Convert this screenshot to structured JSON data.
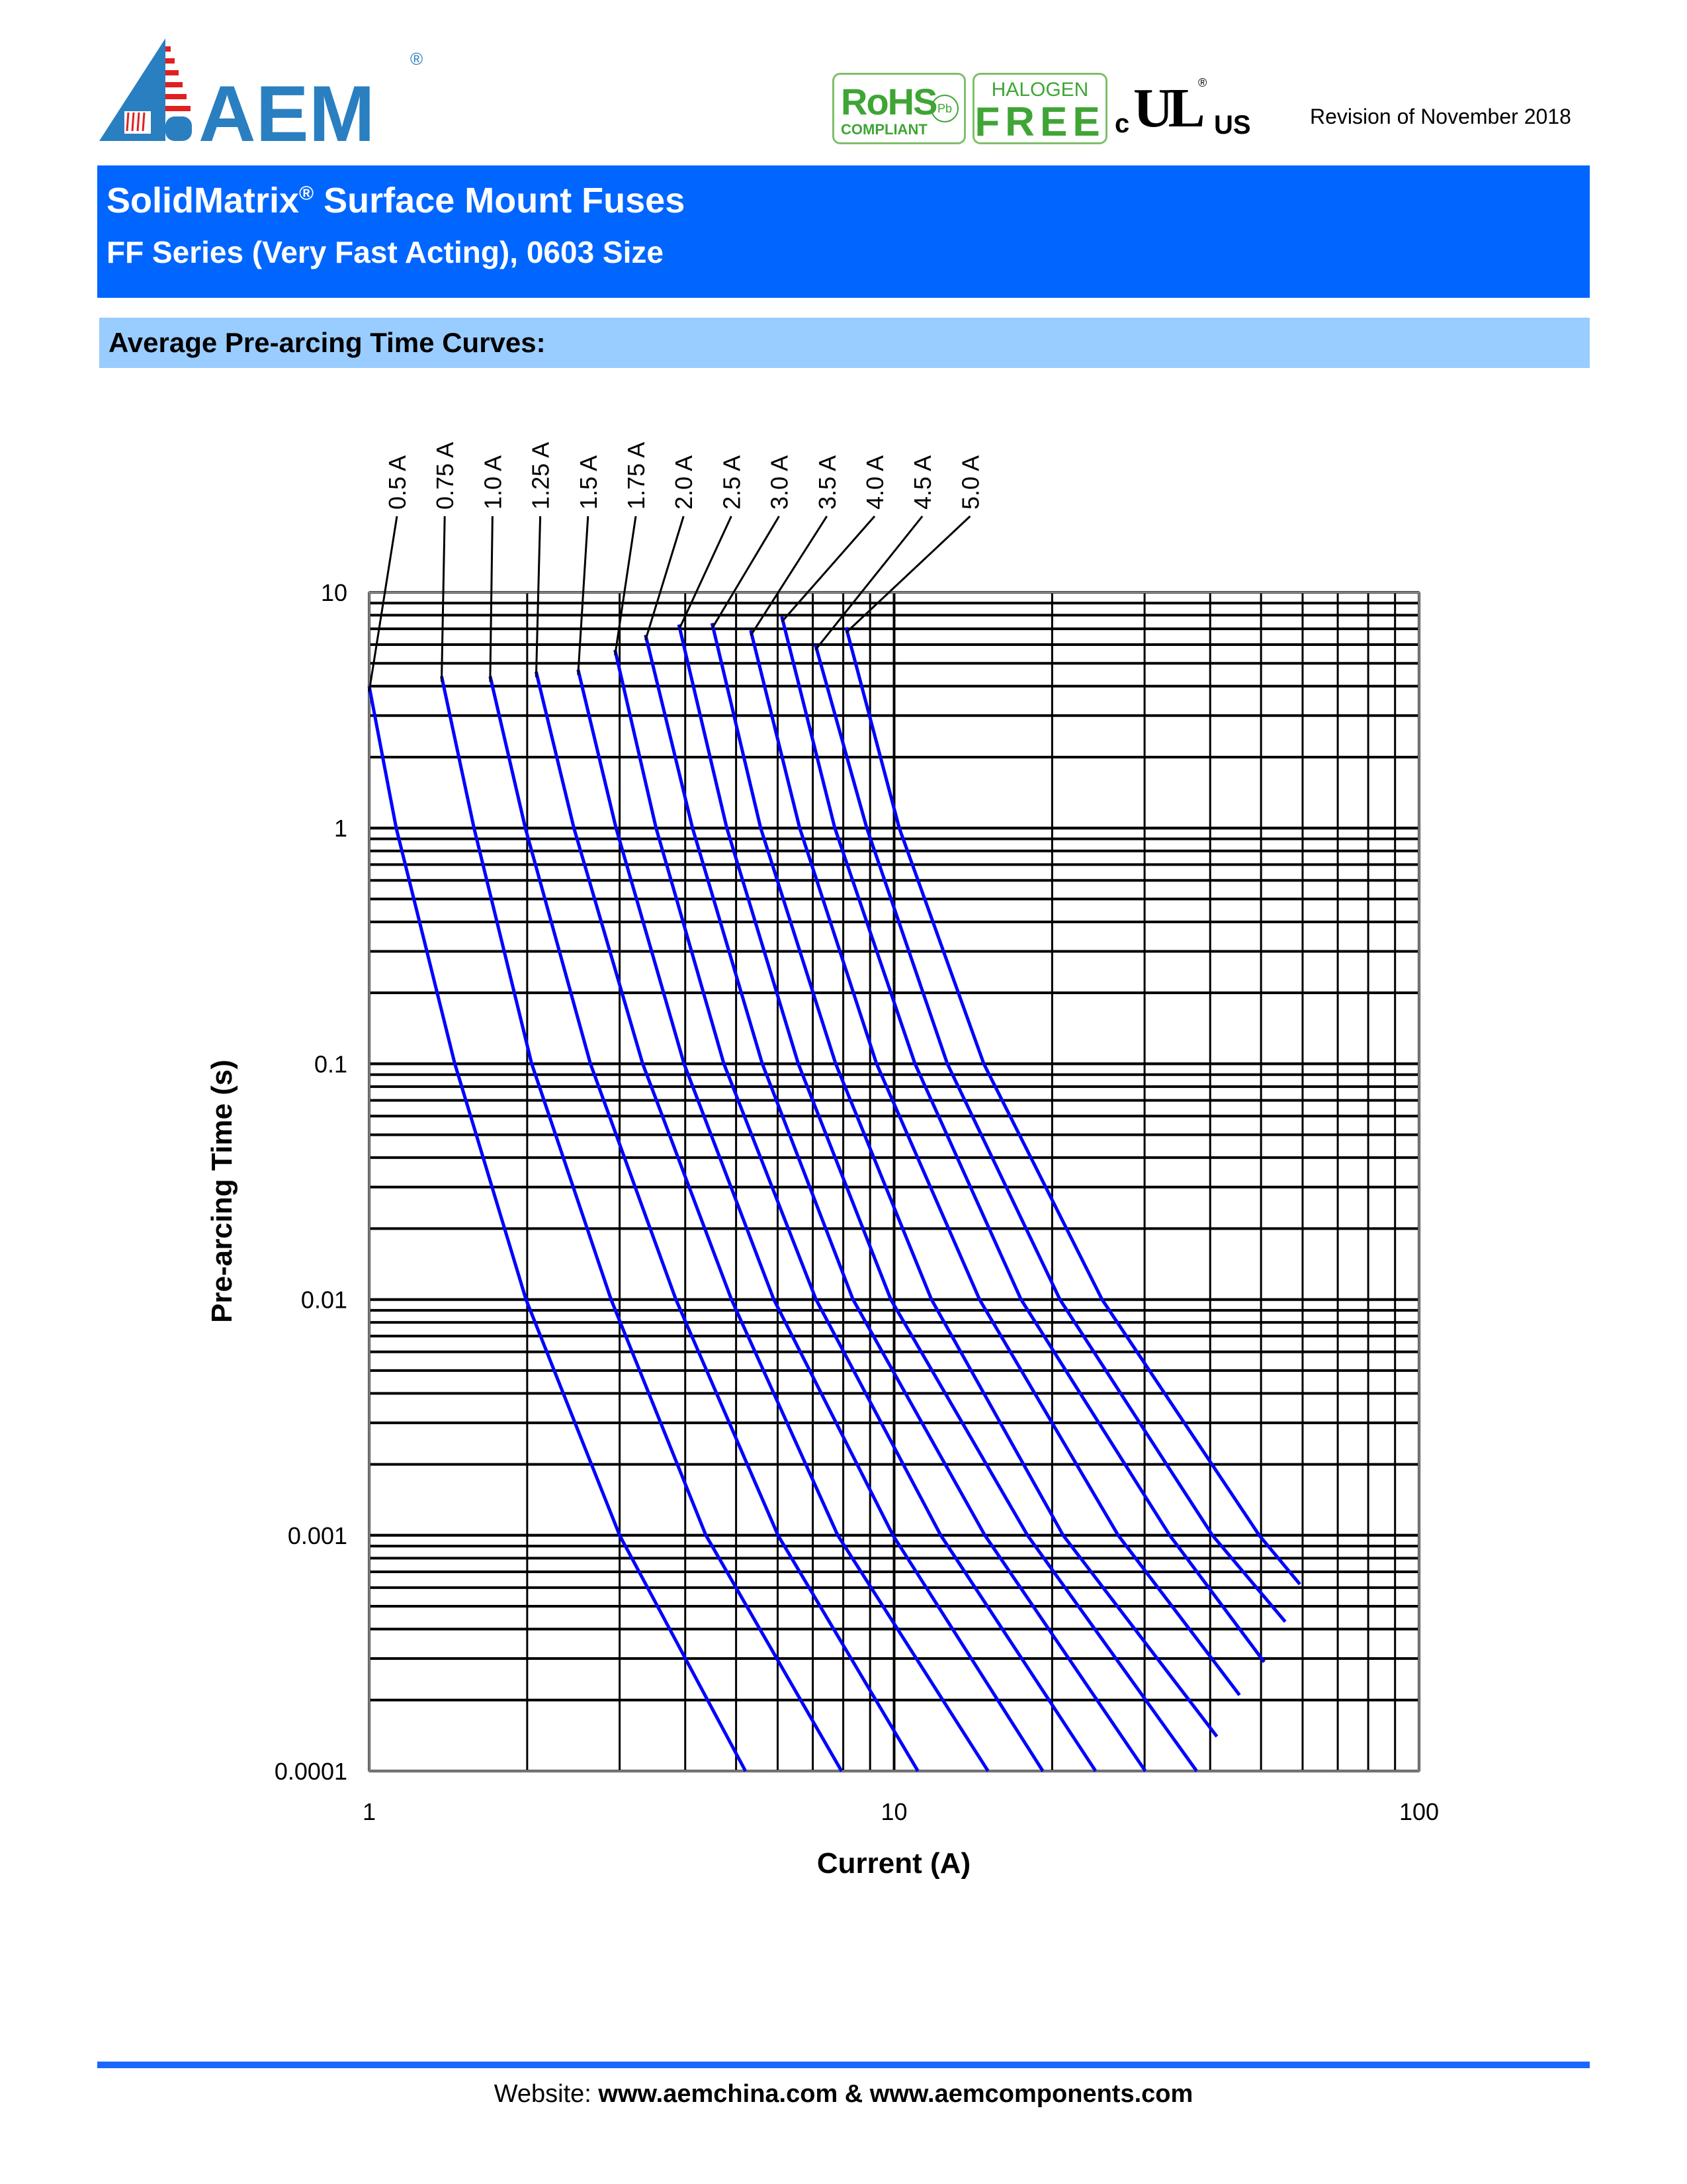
{
  "header": {
    "logo_text": "AEM",
    "badges": {
      "rohs": "RoHS",
      "rohs_sub": "COMPLIANT",
      "pb": "Pb",
      "halogen_top": "HALOGEN",
      "halogen_bottom": "FREE",
      "ul_c": "c",
      "ul_mark": "UL",
      "ul_us": "US",
      "registered": "®"
    },
    "revision": "Revision of November 2018"
  },
  "banner": {
    "title": "SolidMatrix",
    "title_reg": "®",
    "title_rest": " Surface Mount Fuses",
    "subtitle": "FF Series (Very Fast Acting), 0603 Size"
  },
  "section": {
    "title": "Average Pre-arcing Time Curves:"
  },
  "chart_data": {
    "type": "line",
    "title": "",
    "xlabel": "Current (A)",
    "ylabel": "Pre-arcing Time (s)",
    "xscale": "log",
    "yscale": "log",
    "xlim": [
      1,
      100
    ],
    "ylim": [
      0.0001,
      10
    ],
    "xticks": [
      "1",
      "10",
      "100"
    ],
    "yticks": [
      "10",
      "1",
      "0.1",
      "0.01",
      "0.001",
      "0.0001"
    ],
    "grid": true,
    "line_color": "#0000ff",
    "series": [
      {
        "name": "0.5 A",
        "points": [
          [
            1.0,
            4.0
          ],
          [
            1.126,
            1
          ],
          [
            1.456,
            0.1
          ],
          [
            1.99,
            0.01
          ],
          [
            3.0,
            0.001
          ],
          [
            5.21,
            0.0001
          ]
        ]
      },
      {
        "name": "0.75 A",
        "points": [
          [
            1.374,
            4.4
          ],
          [
            1.584,
            1
          ],
          [
            2.04,
            0.1
          ],
          [
            2.89,
            0.01
          ],
          [
            4.38,
            0.001
          ],
          [
            7.94,
            0.0001
          ]
        ]
      },
      {
        "name": "1.0 A",
        "points": [
          [
            1.7,
            4.4
          ],
          [
            1.984,
            1
          ],
          [
            2.64,
            0.1
          ],
          [
            3.84,
            0.01
          ],
          [
            6.01,
            0.001
          ],
          [
            11.1,
            0.0001
          ]
        ]
      },
      {
        "name": "1.25 A",
        "points": [
          [
            2.08,
            4.6
          ],
          [
            2.455,
            1
          ],
          [
            3.32,
            0.1
          ],
          [
            4.9,
            0.01
          ],
          [
            7.81,
            0.001
          ],
          [
            15.1,
            0.0001
          ]
        ]
      },
      {
        "name": "1.5 A",
        "points": [
          [
            2.5,
            4.7
          ],
          [
            2.953,
            1
          ],
          [
            3.98,
            0.1
          ],
          [
            5.9,
            0.01
          ],
          [
            9.95,
            0.001
          ],
          [
            19.2,
            0.0001
          ]
        ]
      },
      {
        "name": "1.75 A",
        "points": [
          [
            2.94,
            5.7
          ],
          [
            3.52,
            1
          ],
          [
            4.74,
            0.1
          ],
          [
            7.1,
            0.01
          ],
          [
            12.27,
            0.001
          ],
          [
            24.2,
            0.0001
          ]
        ]
      },
      {
        "name": "2.0 A",
        "points": [
          [
            3.36,
            6.6
          ],
          [
            4.13,
            1
          ],
          [
            5.61,
            0.1
          ],
          [
            8.35,
            0.01
          ],
          [
            14.89,
            0.001
          ],
          [
            30.1,
            0.0001
          ]
        ]
      },
      {
        "name": "2.5 A",
        "points": [
          [
            3.89,
            7.3
          ],
          [
            4.8,
            1
          ],
          [
            6.57,
            0.1
          ],
          [
            9.86,
            0.01
          ],
          [
            17.95,
            0.001
          ],
          [
            37.7,
            0.0001
          ]
        ]
      },
      {
        "name": "3.0 A",
        "points": [
          [
            4.5,
            7.4
          ],
          [
            5.57,
            1
          ],
          [
            7.74,
            0.1
          ],
          [
            11.78,
            0.01
          ],
          [
            20.99,
            0.001
          ],
          [
            41.2,
            0.00014
          ]
        ]
      },
      {
        "name": "3.5 A",
        "points": [
          [
            5.33,
            6.9
          ],
          [
            6.61,
            1
          ],
          [
            9.26,
            0.1
          ],
          [
            14.55,
            0.01
          ],
          [
            26.72,
            0.001
          ],
          [
            45.5,
            0.00021
          ]
        ]
      },
      {
        "name": "4.0 A",
        "points": [
          [
            6.11,
            7.9
          ],
          [
            7.71,
            1
          ],
          [
            10.96,
            0.1
          ],
          [
            17.45,
            0.01
          ],
          [
            33.5,
            0.001
          ],
          [
            50.7,
            0.00029
          ]
        ]
      },
      {
        "name": "4.5 A",
        "points": [
          [
            7.08,
            6.0
          ],
          [
            8.87,
            1
          ],
          [
            12.63,
            0.1
          ],
          [
            20.7,
            0.01
          ],
          [
            40.4,
            0.001
          ],
          [
            55.6,
            0.00043
          ]
        ]
      },
      {
        "name": "5.0 A",
        "points": [
          [
            8.1,
            7.1
          ],
          [
            10.23,
            1
          ],
          [
            14.82,
            0.1
          ],
          [
            24.9,
            0.01
          ],
          [
            49.6,
            0.001
          ],
          [
            59.3,
            0.00062
          ]
        ]
      }
    ]
  },
  "footer": {
    "label": "Website: ",
    "sites": "www.aemchina.com & www.aemcomponents.com"
  },
  "colors": {
    "banner": "#0066ff",
    "section": "#99ccff",
    "footer_rule": "#1a66ff",
    "logo_blue": "#2a7fc0",
    "logo_red": "#e02020",
    "badge_green": "#3fa535"
  }
}
